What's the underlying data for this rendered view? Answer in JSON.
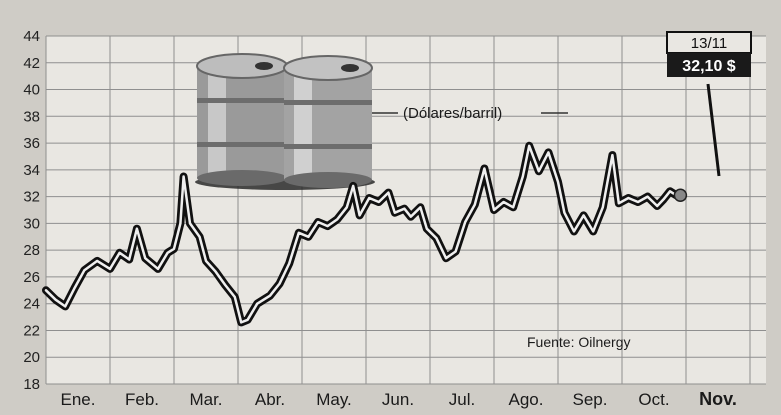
{
  "chart_data": {
    "type": "line",
    "unit_label": "(Dólares/barril)",
    "source": "Fuente: Oilnergy",
    "xlabel": "",
    "ylabel": "",
    "ylim": [
      18,
      44
    ],
    "yticks": [
      "18",
      "20",
      "22",
      "24",
      "26",
      "28",
      "30",
      "32",
      "34",
      "36",
      "38",
      "40",
      "42",
      "44"
    ],
    "months": [
      "Ene.",
      "Feb.",
      "Mar.",
      "Abr.",
      "May.",
      "Jun.",
      "Jul.",
      "Ago.",
      "Sep.",
      "Oct.",
      "Nov."
    ],
    "grid": true,
    "callout": {
      "date": "13/11",
      "value": "32,10 $"
    },
    "series": [
      {
        "values": [
          [
            0.0,
            25.0
          ],
          [
            0.15,
            24.3
          ],
          [
            0.3,
            23.8
          ],
          [
            0.45,
            25.2
          ],
          [
            0.6,
            26.5
          ],
          [
            0.8,
            27.2
          ],
          [
            1.0,
            26.6
          ],
          [
            1.15,
            27.8
          ],
          [
            1.3,
            27.3
          ],
          [
            1.42,
            29.6
          ],
          [
            1.55,
            27.4
          ],
          [
            1.75,
            26.6
          ],
          [
            1.9,
            27.8
          ],
          [
            2.0,
            28.1
          ],
          [
            2.1,
            30.0
          ],
          [
            2.15,
            33.5
          ],
          [
            2.25,
            30.0
          ],
          [
            2.4,
            29.0
          ],
          [
            2.5,
            27.2
          ],
          [
            2.65,
            26.4
          ],
          [
            2.8,
            25.4
          ],
          [
            2.95,
            24.5
          ],
          [
            3.05,
            22.6
          ],
          [
            3.15,
            22.8
          ],
          [
            3.3,
            24.0
          ],
          [
            3.5,
            24.6
          ],
          [
            3.65,
            25.5
          ],
          [
            3.8,
            27.0
          ],
          [
            3.95,
            29.3
          ],
          [
            4.1,
            29.0
          ],
          [
            4.25,
            30.1
          ],
          [
            4.4,
            29.8
          ],
          [
            4.55,
            30.3
          ],
          [
            4.7,
            31.2
          ],
          [
            4.8,
            32.8
          ],
          [
            4.9,
            30.6
          ],
          [
            5.05,
            31.9
          ],
          [
            5.2,
            31.6
          ],
          [
            5.35,
            32.3
          ],
          [
            5.45,
            30.8
          ],
          [
            5.6,
            31.1
          ],
          [
            5.7,
            30.5
          ],
          [
            5.85,
            31.2
          ],
          [
            5.95,
            29.6
          ],
          [
            6.1,
            28.9
          ],
          [
            6.25,
            27.4
          ],
          [
            6.4,
            27.9
          ],
          [
            6.55,
            30.1
          ],
          [
            6.7,
            31.4
          ],
          [
            6.85,
            34.1
          ],
          [
            7.0,
            31.0
          ],
          [
            7.15,
            31.6
          ],
          [
            7.3,
            31.2
          ],
          [
            7.45,
            33.5
          ],
          [
            7.55,
            35.8
          ],
          [
            7.7,
            33.9
          ],
          [
            7.85,
            35.3
          ],
          [
            8.0,
            33.1
          ],
          [
            8.1,
            30.8
          ],
          [
            8.25,
            29.4
          ],
          [
            8.4,
            30.6
          ],
          [
            8.55,
            29.4
          ],
          [
            8.7,
            31.2
          ],
          [
            8.85,
            35.1
          ],
          [
            8.95,
            31.5
          ],
          [
            9.1,
            31.9
          ],
          [
            9.25,
            31.6
          ],
          [
            9.4,
            32.0
          ],
          [
            9.55,
            31.3
          ],
          [
            9.65,
            31.8
          ],
          [
            9.75,
            32.4
          ],
          [
            9.85,
            32.1
          ]
        ]
      }
    ]
  }
}
